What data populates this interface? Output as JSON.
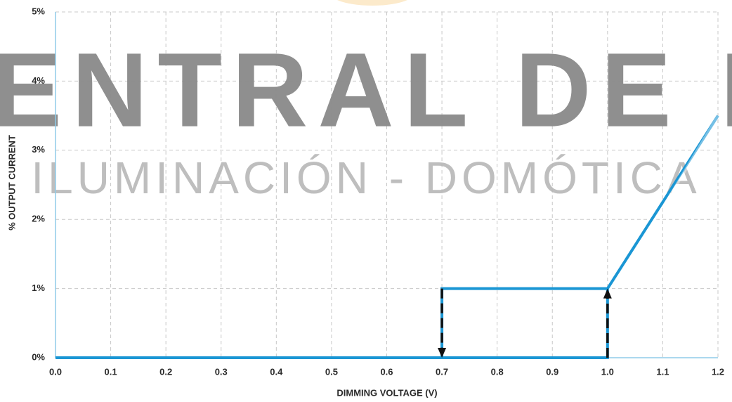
{
  "chart_data": {
    "type": "line",
    "xlabel": "DIMMING VOLTAGE (V)",
    "ylabel": "% OUTPUT CURRENT",
    "watermark": [
      "ENTRAL DE LU",
      "ILUMINACIÓN - DOMÓTICA"
    ],
    "series": [
      {
        "color": "#1a96d4",
        "x": [
          0,
          1.0,
          1.0,
          1.2
        ],
        "values": [
          0,
          0,
          1,
          3.5
        ]
      },
      {
        "color": "#1a96d4",
        "x": [
          0.7,
          0.7,
          1.0
        ],
        "values": [
          0,
          1,
          1
        ]
      }
    ],
    "arrows": [
      {
        "x": 0.7,
        "from": 1,
        "to": 0
      },
      {
        "x": 1.0,
        "from": 0,
        "to": 1
      }
    ],
    "xlim": [
      0,
      1.2
    ],
    "ylim": [
      0,
      5
    ],
    "xticks": [
      {
        "value": 0,
        "label": "0.0"
      },
      0.1,
      0.2,
      0.3,
      0.4,
      0.5,
      0.6,
      0.7,
      0.8,
      0.9,
      {
        "value": 1,
        "label": "1.0"
      },
      1.1,
      1.2
    ],
    "yticks": [
      {
        "value": 0,
        "label": "0%"
      },
      {
        "value": 1,
        "label": "1%"
      },
      {
        "value": 2,
        "label": "2%"
      },
      {
        "value": 3,
        "label": "3%"
      },
      {
        "value": 4,
        "label": "4%"
      },
      {
        "value": 5,
        "label": "5%"
      }
    ],
    "grid": true
  }
}
